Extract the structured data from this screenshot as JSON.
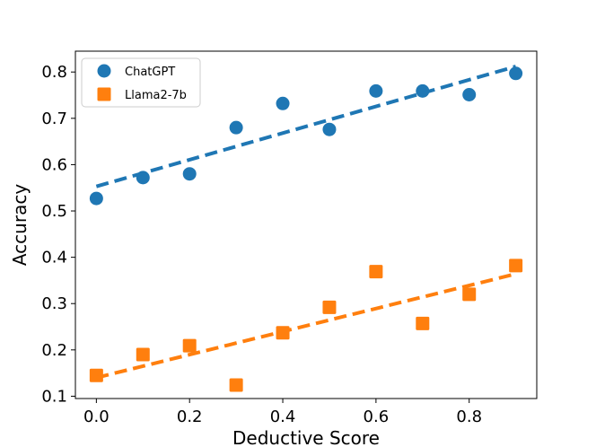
{
  "chart_data": {
    "type": "scatter",
    "title": "",
    "xlabel": "Deductive Score",
    "ylabel": "Accuracy",
    "xlim": [
      -0.045,
      0.945
    ],
    "ylim": [
      0.095,
      0.845
    ],
    "xticks": [
      0.0,
      0.2,
      0.4,
      0.6,
      0.8
    ],
    "xtick_labels": [
      "0.0",
      "0.2",
      "0.4",
      "0.6",
      "0.8"
    ],
    "yticks": [
      0.1,
      0.2,
      0.3,
      0.4,
      0.5,
      0.6,
      0.7,
      0.8
    ],
    "ytick_labels": [
      "0.1",
      "0.2",
      "0.3",
      "0.4",
      "0.5",
      "0.6",
      "0.7",
      "0.8"
    ],
    "grid": false,
    "legend_position": "top-left",
    "series": [
      {
        "name": "ChatGPT",
        "marker": "circle",
        "color": "#1f77b4",
        "x": [
          0.0,
          0.1,
          0.2,
          0.3,
          0.4,
          0.5,
          0.6,
          0.7,
          0.8,
          0.9
        ],
        "y": [
          0.527,
          0.572,
          0.58,
          0.68,
          0.732,
          0.676,
          0.759,
          0.759,
          0.751,
          0.797
        ],
        "trendline": {
          "x": [
            0.0,
            0.9
          ],
          "y": [
            0.553,
            0.812
          ]
        }
      },
      {
        "name": "Llama2-7b",
        "marker": "square",
        "color": "#ff7f0e",
        "x": [
          0.0,
          0.1,
          0.2,
          0.3,
          0.4,
          0.5,
          0.6,
          0.7,
          0.8,
          0.9
        ],
        "y": [
          0.145,
          0.19,
          0.209,
          0.124,
          0.237,
          0.292,
          0.369,
          0.257,
          0.32,
          0.382
        ],
        "trendline": {
          "x": [
            0.0,
            0.9
          ],
          "y": [
            0.14,
            0.364
          ]
        }
      }
    ]
  }
}
